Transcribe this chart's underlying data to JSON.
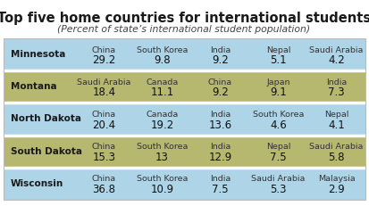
{
  "title": "Top five home countries for international students",
  "subtitle": "(Percent of state’s international student population)",
  "rows": [
    {
      "state": "Minnesota",
      "color": "#aed4e8",
      "entries": [
        {
          "country": "China",
          "value": "29.2"
        },
        {
          "country": "South Korea",
          "value": "9.8"
        },
        {
          "country": "India",
          "value": "9.2"
        },
        {
          "country": "Nepal",
          "value": "5.1"
        },
        {
          "country": "Saudi Arabia",
          "value": "4.2"
        }
      ]
    },
    {
      "state": "Montana",
      "color": "#b5b86e",
      "entries": [
        {
          "country": "Saudi Arabia",
          "value": "18.4"
        },
        {
          "country": "Canada",
          "value": "11.1"
        },
        {
          "country": "China",
          "value": "9.2"
        },
        {
          "country": "Japan",
          "value": "9.1"
        },
        {
          "country": "India",
          "value": "7.3"
        }
      ]
    },
    {
      "state": "North Dakota",
      "color": "#aed4e8",
      "entries": [
        {
          "country": "China",
          "value": "20.4"
        },
        {
          "country": "Canada",
          "value": "19.2"
        },
        {
          "country": "India",
          "value": "13.6"
        },
        {
          "country": "South Korea",
          "value": "4.6"
        },
        {
          "country": "Nepal",
          "value": "4.1"
        }
      ]
    },
    {
      "state": "South Dakota",
      "color": "#b5b86e",
      "entries": [
        {
          "country": "China",
          "value": "15.3"
        },
        {
          "country": "South Korea",
          "value": "13"
        },
        {
          "country": "India",
          "value": "12.9"
        },
        {
          "country": "Nepal",
          "value": "7.5"
        },
        {
          "country": "Saudi Arabia",
          "value": "5.8"
        }
      ]
    },
    {
      "state": "Wisconsin",
      "color": "#aed4e8",
      "entries": [
        {
          "country": "China",
          "value": "36.8"
        },
        {
          "country": "South Korea",
          "value": "10.9"
        },
        {
          "country": "India",
          "value": "7.5"
        },
        {
          "country": "Saudi Arabia",
          "value": "5.3"
        },
        {
          "country": "Malaysia",
          "value": "2.9"
        }
      ]
    }
  ],
  "fig_width": 4.13,
  "fig_height": 2.31,
  "dpi": 100,
  "background_color": "#ffffff",
  "title_fontsize": 10.5,
  "subtitle_fontsize": 7.8,
  "state_fontsize": 7.5,
  "country_fontsize": 6.8,
  "value_fontsize": 8.5
}
